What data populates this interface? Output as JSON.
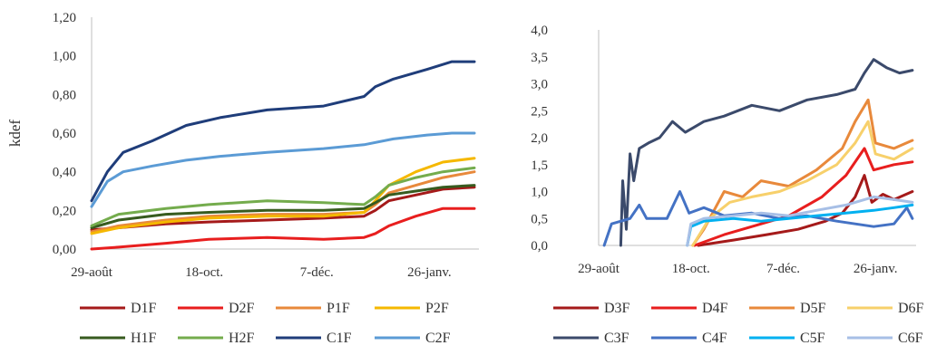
{
  "chart_data": [
    {
      "type": "line",
      "title": "",
      "xlabel": "",
      "ylabel": "kdef",
      "ylim": [
        0,
        1.2
      ],
      "yticks": [
        "0,00",
        "0,20",
        "0,40",
        "0,60",
        "0,80",
        "1,00",
        "1,20"
      ],
      "xticks": [
        {
          "date": "2019-08-29",
          "label": "29-août"
        },
        {
          "date": "2019-10-18",
          "label": "18-oct."
        },
        {
          "date": "2019-12-07",
          "label": "7-déc."
        },
        {
          "date": "2020-01-26",
          "label": "26-janv."
        }
      ],
      "xlim": [
        "2019-08-29",
        "2020-02-17"
      ],
      "grid": false,
      "legend": "bottom",
      "series": [
        {
          "name": "D1F",
          "color": "#a51a1a",
          "points": [
            [
              "2019-08-29",
              0.1
            ],
            [
              "2019-09-10",
              0.11
            ],
            [
              "2019-10-01",
              0.13
            ],
            [
              "2019-10-20",
              0.14
            ],
            [
              "2019-11-15",
              0.15
            ],
            [
              "2019-12-10",
              0.16
            ],
            [
              "2019-12-28",
              0.17
            ],
            [
              "2020-01-02",
              0.2
            ],
            [
              "2020-01-08",
              0.25
            ],
            [
              "2020-01-20",
              0.28
            ],
            [
              "2020-02-01",
              0.31
            ],
            [
              "2020-02-15",
              0.32
            ]
          ]
        },
        {
          "name": "D2F",
          "color": "#e81e1e",
          "points": [
            [
              "2019-08-29",
              0.0
            ],
            [
              "2019-09-10",
              0.01
            ],
            [
              "2019-10-01",
              0.03
            ],
            [
              "2019-10-20",
              0.05
            ],
            [
              "2019-11-15",
              0.06
            ],
            [
              "2019-12-10",
              0.05
            ],
            [
              "2019-12-28",
              0.06
            ],
            [
              "2020-01-02",
              0.08
            ],
            [
              "2020-01-08",
              0.12
            ],
            [
              "2020-01-20",
              0.17
            ],
            [
              "2020-02-01",
              0.21
            ],
            [
              "2020-02-15",
              0.21
            ]
          ]
        },
        {
          "name": "P1F",
          "color": "#e8893b",
          "points": [
            [
              "2019-08-29",
              0.09
            ],
            [
              "2019-09-10",
              0.12
            ],
            [
              "2019-10-01",
              0.15
            ],
            [
              "2019-10-20",
              0.17
            ],
            [
              "2019-11-15",
              0.18
            ],
            [
              "2019-12-10",
              0.18
            ],
            [
              "2019-12-28",
              0.19
            ],
            [
              "2020-01-02",
              0.23
            ],
            [
              "2020-01-08",
              0.29
            ],
            [
              "2020-01-20",
              0.33
            ],
            [
              "2020-02-01",
              0.37
            ],
            [
              "2020-02-15",
              0.4
            ]
          ]
        },
        {
          "name": "P2F",
          "color": "#f5b800",
          "points": [
            [
              "2019-08-29",
              0.08
            ],
            [
              "2019-09-10",
              0.11
            ],
            [
              "2019-10-01",
              0.14
            ],
            [
              "2019-10-20",
              0.16
            ],
            [
              "2019-11-15",
              0.17
            ],
            [
              "2019-12-10",
              0.17
            ],
            [
              "2019-12-28",
              0.19
            ],
            [
              "2020-01-02",
              0.25
            ],
            [
              "2020-01-08",
              0.33
            ],
            [
              "2020-01-20",
              0.4
            ],
            [
              "2020-02-01",
              0.45
            ],
            [
              "2020-02-15",
              0.47
            ]
          ]
        },
        {
          "name": "H1F",
          "color": "#375b1f",
          "points": [
            [
              "2019-08-29",
              0.11
            ],
            [
              "2019-09-10",
              0.15
            ],
            [
              "2019-10-01",
              0.18
            ],
            [
              "2019-10-20",
              0.19
            ],
            [
              "2019-11-15",
              0.2
            ],
            [
              "2019-12-10",
              0.2
            ],
            [
              "2019-12-28",
              0.21
            ],
            [
              "2020-01-02",
              0.24
            ],
            [
              "2020-01-08",
              0.28
            ],
            [
              "2020-01-20",
              0.3
            ],
            [
              "2020-02-01",
              0.32
            ],
            [
              "2020-02-15",
              0.33
            ]
          ]
        },
        {
          "name": "H2F",
          "color": "#74ac4d",
          "points": [
            [
              "2019-08-29",
              0.12
            ],
            [
              "2019-09-10",
              0.18
            ],
            [
              "2019-10-01",
              0.21
            ],
            [
              "2019-10-20",
              0.23
            ],
            [
              "2019-11-15",
              0.25
            ],
            [
              "2019-12-10",
              0.24
            ],
            [
              "2019-12-28",
              0.23
            ],
            [
              "2020-01-02",
              0.27
            ],
            [
              "2020-01-08",
              0.33
            ],
            [
              "2020-01-20",
              0.37
            ],
            [
              "2020-02-01",
              0.4
            ],
            [
              "2020-02-15",
              0.42
            ]
          ]
        },
        {
          "name": "C1F",
          "color": "#1f3d7a",
          "points": [
            [
              "2019-08-29",
              0.25
            ],
            [
              "2019-09-05",
              0.4
            ],
            [
              "2019-09-12",
              0.5
            ],
            [
              "2019-09-25",
              0.56
            ],
            [
              "2019-10-10",
              0.64
            ],
            [
              "2019-10-25",
              0.68
            ],
            [
              "2019-11-15",
              0.72
            ],
            [
              "2019-12-10",
              0.74
            ],
            [
              "2019-12-28",
              0.79
            ],
            [
              "2020-01-02",
              0.84
            ],
            [
              "2020-01-10",
              0.88
            ],
            [
              "2020-01-25",
              0.93
            ],
            [
              "2020-02-05",
              0.97
            ],
            [
              "2020-02-15",
              0.97
            ]
          ]
        },
        {
          "name": "C2F",
          "color": "#5b9bd5",
          "points": [
            [
              "2019-08-29",
              0.22
            ],
            [
              "2019-09-05",
              0.35
            ],
            [
              "2019-09-12",
              0.4
            ],
            [
              "2019-09-25",
              0.43
            ],
            [
              "2019-10-10",
              0.46
            ],
            [
              "2019-10-25",
              0.48
            ],
            [
              "2019-11-15",
              0.5
            ],
            [
              "2019-12-10",
              0.52
            ],
            [
              "2019-12-28",
              0.54
            ],
            [
              "2020-01-10",
              0.57
            ],
            [
              "2020-01-25",
              0.59
            ],
            [
              "2020-02-05",
              0.6
            ],
            [
              "2020-02-15",
              0.6
            ]
          ]
        }
      ]
    },
    {
      "type": "line",
      "title": "",
      "xlabel": "",
      "ylabel": "",
      "ylim": [
        0,
        4
      ],
      "yticks": [
        "0,0",
        "0,5",
        "1,0",
        "1,5",
        "2,0",
        "2,5",
        "3,0",
        "3,5",
        "4,0"
      ],
      "xticks": [
        {
          "date": "2019-08-29",
          "label": "29-août"
        },
        {
          "date": "2019-10-18",
          "label": "18-oct."
        },
        {
          "date": "2019-12-07",
          "label": "7-déc."
        },
        {
          "date": "2020-01-26",
          "label": "26-janv."
        }
      ],
      "xlim": [
        "2019-08-29",
        "2020-02-17"
      ],
      "grid": false,
      "legend": "bottom",
      "series": [
        {
          "name": "D3F",
          "color": "#a51a1a",
          "points": [
            [
              "2019-10-22",
              0.0
            ],
            [
              "2019-11-10",
              0.1
            ],
            [
              "2019-11-28",
              0.2
            ],
            [
              "2019-12-15",
              0.3
            ],
            [
              "2019-12-30",
              0.45
            ],
            [
              "2020-01-08",
              0.6
            ],
            [
              "2020-01-15",
              0.9
            ],
            [
              "2020-01-20",
              1.3
            ],
            [
              "2020-01-24",
              0.8
            ],
            [
              "2020-01-30",
              0.95
            ],
            [
              "2020-02-05",
              0.85
            ],
            [
              "2020-02-15",
              1.0
            ]
          ]
        },
        {
          "name": "D4F",
          "color": "#e81e1e",
          "points": [
            [
              "2019-10-20",
              0.0
            ],
            [
              "2019-11-05",
              0.2
            ],
            [
              "2019-11-20",
              0.35
            ],
            [
              "2019-12-10",
              0.55
            ],
            [
              "2019-12-28",
              0.9
            ],
            [
              "2020-01-10",
              1.3
            ],
            [
              "2020-01-20",
              1.8
            ],
            [
              "2020-01-25",
              1.4
            ],
            [
              "2020-02-05",
              1.5
            ],
            [
              "2020-02-15",
              1.55
            ]
          ]
        },
        {
          "name": "D5F",
          "color": "#e8893b",
          "points": [
            [
              "2019-10-19",
              0.0
            ],
            [
              "2019-10-25",
              0.3
            ],
            [
              "2019-11-05",
              1.0
            ],
            [
              "2019-11-15",
              0.9
            ],
            [
              "2019-11-25",
              1.2
            ],
            [
              "2019-12-10",
              1.1
            ],
            [
              "2019-12-25",
              1.4
            ],
            [
              "2020-01-08",
              1.8
            ],
            [
              "2020-01-15",
              2.3
            ],
            [
              "2020-01-22",
              2.7
            ],
            [
              "2020-01-26",
              1.9
            ],
            [
              "2020-02-05",
              1.8
            ],
            [
              "2020-02-15",
              1.95
            ]
          ]
        },
        {
          "name": "D6F",
          "color": "#f7d06b",
          "points": [
            [
              "2019-10-19",
              0.0
            ],
            [
              "2019-10-28",
              0.5
            ],
            [
              "2019-11-08",
              0.8
            ],
            [
              "2019-11-20",
              0.9
            ],
            [
              "2019-12-05",
              1.0
            ],
            [
              "2019-12-20",
              1.2
            ],
            [
              "2020-01-05",
              1.5
            ],
            [
              "2020-01-15",
              1.9
            ],
            [
              "2020-01-22",
              2.3
            ],
            [
              "2020-01-26",
              1.7
            ],
            [
              "2020-02-05",
              1.6
            ],
            [
              "2020-02-15",
              1.8
            ]
          ]
        },
        {
          "name": "C3F",
          "color": "#3b4a6b",
          "points": [
            [
              "2019-09-10",
              0.0
            ],
            [
              "2019-09-11",
              1.2
            ],
            [
              "2019-09-13",
              0.3
            ],
            [
              "2019-09-15",
              1.7
            ],
            [
              "2019-09-17",
              1.2
            ],
            [
              "2019-09-20",
              1.8
            ],
            [
              "2019-09-25",
              1.9
            ],
            [
              "2019-10-01",
              2.0
            ],
            [
              "2019-10-08",
              2.3
            ],
            [
              "2019-10-15",
              2.1
            ],
            [
              "2019-10-25",
              2.3
            ],
            [
              "2019-11-05",
              2.4
            ],
            [
              "2019-11-20",
              2.6
            ],
            [
              "2019-12-05",
              2.5
            ],
            [
              "2019-12-20",
              2.7
            ],
            [
              "2020-01-05",
              2.8
            ],
            [
              "2020-01-15",
              2.9
            ],
            [
              "2020-01-20",
              3.2
            ],
            [
              "2020-01-25",
              3.45
            ],
            [
              "2020-02-01",
              3.3
            ],
            [
              "2020-02-08",
              3.2
            ],
            [
              "2020-02-15",
              3.25
            ]
          ]
        },
        {
          "name": "C4F",
          "color": "#4472c4",
          "points": [
            [
              "2019-09-01",
              0.0
            ],
            [
              "2019-09-05",
              0.4
            ],
            [
              "2019-09-15",
              0.5
            ],
            [
              "2019-09-20",
              0.75
            ],
            [
              "2019-09-24",
              0.5
            ],
            [
              "2019-10-05",
              0.5
            ],
            [
              "2019-10-12",
              1.0
            ],
            [
              "2019-10-17",
              0.6
            ],
            [
              "2019-10-25",
              0.7
            ],
            [
              "2019-11-05",
              0.55
            ],
            [
              "2019-11-20",
              0.6
            ],
            [
              "2019-12-05",
              0.5
            ],
            [
              "2019-12-20",
              0.55
            ],
            [
              "2020-01-05",
              0.45
            ],
            [
              "2020-01-15",
              0.4
            ],
            [
              "2020-01-25",
              0.35
            ],
            [
              "2020-02-05",
              0.4
            ],
            [
              "2020-02-12",
              0.7
            ],
            [
              "2020-02-15",
              0.5
            ]
          ]
        },
        {
          "name": "C5F",
          "color": "#00b0f0",
          "points": [
            [
              "2019-10-16",
              0.0
            ],
            [
              "2019-10-18",
              0.35
            ],
            [
              "2019-10-25",
              0.45
            ],
            [
              "2019-11-10",
              0.5
            ],
            [
              "2019-11-25",
              0.45
            ],
            [
              "2019-12-10",
              0.5
            ],
            [
              "2019-12-25",
              0.55
            ],
            [
              "2020-01-10",
              0.6
            ],
            [
              "2020-01-25",
              0.65
            ],
            [
              "2020-02-05",
              0.7
            ],
            [
              "2020-02-15",
              0.75
            ]
          ]
        },
        {
          "name": "C6F",
          "color": "#a7bfe6",
          "points": [
            [
              "2019-10-16",
              0.0
            ],
            [
              "2019-10-18",
              0.4
            ],
            [
              "2019-10-25",
              0.5
            ],
            [
              "2019-11-10",
              0.55
            ],
            [
              "2019-11-25",
              0.6
            ],
            [
              "2019-12-10",
              0.55
            ],
            [
              "2019-12-25",
              0.65
            ],
            [
              "2020-01-10",
              0.75
            ],
            [
              "2020-01-25",
              0.9
            ],
            [
              "2020-02-05",
              0.85
            ],
            [
              "2020-02-15",
              0.8
            ]
          ]
        }
      ]
    }
  ]
}
